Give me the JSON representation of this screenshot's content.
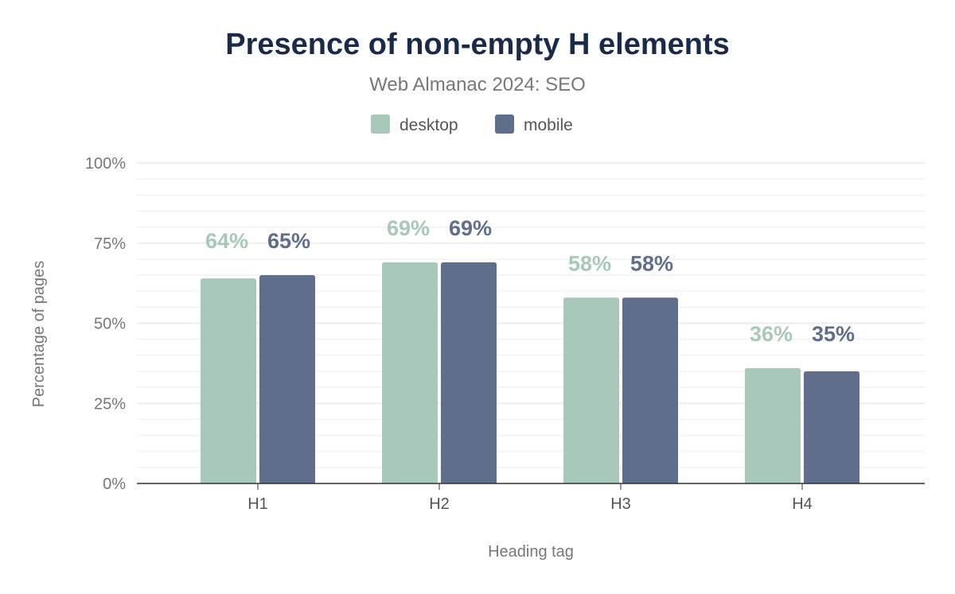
{
  "chart_data": {
    "type": "bar",
    "title": "Presence of non-empty H elements",
    "subtitle": "Web Almanac 2024: SEO",
    "xlabel": "Heading tag",
    "ylabel": "Percentage of pages",
    "categories": [
      "H1",
      "H2",
      "H3",
      "H4"
    ],
    "series": [
      {
        "name": "desktop",
        "color": "#a8c9b9",
        "values": [
          64,
          69,
          58,
          36
        ],
        "labels": [
          "64%",
          "69%",
          "58%",
          "36%"
        ]
      },
      {
        "name": "mobile",
        "color": "#5f6f8b",
        "values": [
          65,
          69,
          58,
          35
        ],
        "labels": [
          "65%",
          "69%",
          "58%",
          "35%"
        ]
      }
    ],
    "ylim": [
      0,
      100
    ],
    "yticks": [
      0,
      25,
      50,
      75,
      100
    ],
    "ytick_labels": [
      "0%",
      "25%",
      "50%",
      "75%",
      "100%"
    ],
    "grid": true,
    "legend_position": "top-center",
    "title_color": "#1a2b49"
  }
}
